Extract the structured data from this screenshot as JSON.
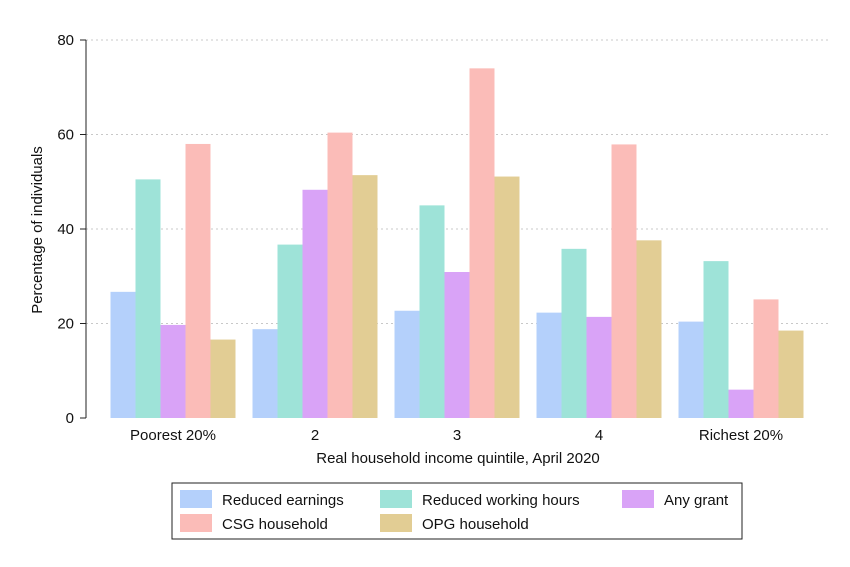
{
  "chart_data": {
    "type": "bar",
    "xlabel": "Real household income quintile, April 2020",
    "ylabel": "Percentage of individuals",
    "ylim": [
      0,
      80
    ],
    "yticks": [
      0,
      20,
      40,
      60,
      80
    ],
    "grid": true,
    "legend_position": "bottom",
    "categories": [
      "Poorest 20%",
      "2",
      "3",
      "4",
      "Richest 20%"
    ],
    "series": [
      {
        "name": "Reduced earnings",
        "color": "#b4d0fb",
        "values": [
          26.7,
          18.8,
          22.7,
          22.3,
          20.4
        ]
      },
      {
        "name": "Reduced working hours",
        "color": "#9ee3d8",
        "values": [
          50.5,
          36.7,
          45.0,
          35.8,
          33.2
        ]
      },
      {
        "name": "Any grant",
        "color": "#d9a3f7",
        "values": [
          19.7,
          48.3,
          30.9,
          21.4,
          6.0
        ]
      },
      {
        "name": "CSG household",
        "color": "#fbbcb8",
        "values": [
          58.0,
          60.4,
          74.0,
          57.9,
          25.1
        ]
      },
      {
        "name": "OPG household",
        "color": "#e2cd94",
        "values": [
          16.6,
          51.4,
          51.1,
          37.6,
          18.5
        ]
      }
    ]
  }
}
